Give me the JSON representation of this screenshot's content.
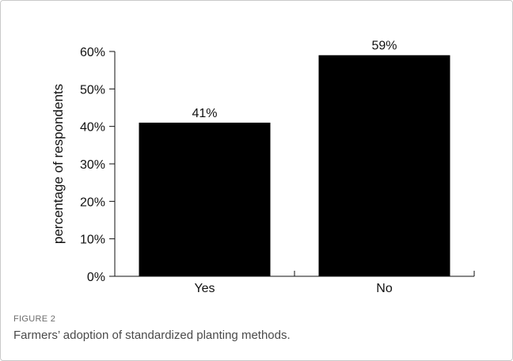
{
  "figure": {
    "label": "FIGURE 2",
    "caption": "Farmers’ adoption of standardized planting methods."
  },
  "chart_data": {
    "type": "bar",
    "categories": [
      "Yes",
      "No"
    ],
    "values": [
      41,
      59
    ],
    "value_labels": [
      "41%",
      "59%"
    ],
    "title": "",
    "xlabel": "",
    "ylabel": "percentage of respondents",
    "ylim": [
      0,
      60
    ],
    "yticks": [
      0,
      10,
      20,
      30,
      40,
      50,
      60
    ],
    "ytick_labels": [
      "0%",
      "10%",
      "20%",
      "30%",
      "40%",
      "50%",
      "60%"
    ],
    "bar_color": "#000000",
    "grid": false,
    "legend": "none"
  }
}
